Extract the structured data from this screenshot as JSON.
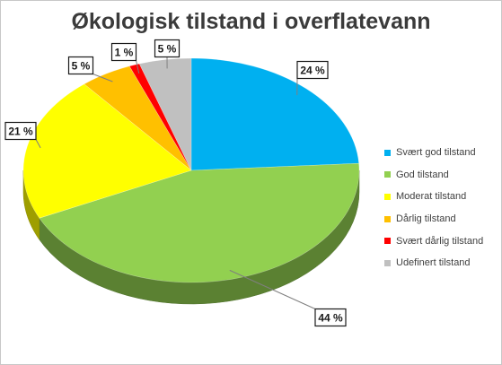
{
  "chart_data": {
    "type": "pie",
    "title": "Økologisk tilstand i overflatevann",
    "categories": [
      "Svært god tilstand",
      "God tilstand",
      "Moderat tilstand",
      "Dårlig tilstand",
      "Svært dårlig tilstand",
      "Udefinert tilstand"
    ],
    "values": [
      24,
      44,
      21,
      5,
      1,
      5
    ],
    "data_labels": [
      "24 %",
      "44 %",
      "21 %",
      "5 %",
      "1 %",
      "5 %"
    ],
    "colors": [
      "#00b0f0",
      "#92d050",
      "#ffff00",
      "#ffc000",
      "#ff0000",
      "#c0c0c0"
    ],
    "legend_position": "right",
    "style": "3d"
  }
}
